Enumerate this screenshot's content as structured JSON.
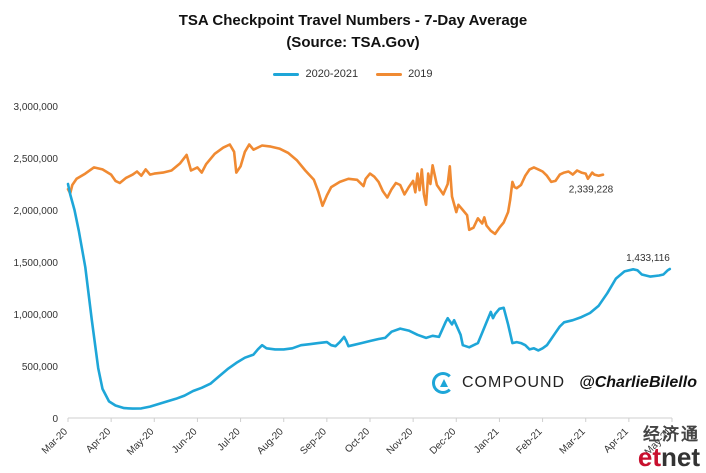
{
  "chart_data": {
    "type": "line",
    "title": "TSA Checkpoint Travel Numbers - 7-Day Average",
    "subtitle": "(Source: TSA.Gov)",
    "xlabel": "",
    "ylabel": "",
    "ylim": [
      0,
      3000000
    ],
    "yticks": [
      "0",
      "500,000",
      "1,000,000",
      "1,500,000",
      "2,000,000",
      "2,500,000",
      "3,000,000"
    ],
    "ytick_values": [
      0,
      500000,
      1000000,
      1500000,
      2000000,
      2500000,
      3000000
    ],
    "xticks": [
      "Mar-20",
      "Apr-20",
      "May-20",
      "Jun-20",
      "Jul-20",
      "Aug-20",
      "Sep-20",
      "Oct-20",
      "Nov-20",
      "Dec-20",
      "Jan-21",
      "Feb-21",
      "Mar-21",
      "Apr-21",
      "May-21"
    ],
    "grid": false,
    "legend_position": "top-center",
    "series": [
      {
        "name": "2020-2021",
        "color": "#1ea6d8",
        "end_label": "1,433,116",
        "points": [
          [
            0.0,
            2250000
          ],
          [
            0.05,
            2150000
          ],
          [
            0.15,
            2000000
          ],
          [
            0.25,
            1800000
          ],
          [
            0.4,
            1450000
          ],
          [
            0.55,
            950000
          ],
          [
            0.7,
            480000
          ],
          [
            0.8,
            280000
          ],
          [
            0.95,
            160000
          ],
          [
            1.1,
            120000
          ],
          [
            1.3,
            95000
          ],
          [
            1.5,
            90000
          ],
          [
            1.7,
            92000
          ],
          [
            1.9,
            110000
          ],
          [
            2.1,
            135000
          ],
          [
            2.3,
            160000
          ],
          [
            2.5,
            185000
          ],
          [
            2.7,
            215000
          ],
          [
            2.9,
            260000
          ],
          [
            3.1,
            290000
          ],
          [
            3.3,
            330000
          ],
          [
            3.5,
            400000
          ],
          [
            3.7,
            470000
          ],
          [
            3.9,
            530000
          ],
          [
            4.1,
            580000
          ],
          [
            4.3,
            610000
          ],
          [
            4.4,
            660000
          ],
          [
            4.5,
            700000
          ],
          [
            4.6,
            670000
          ],
          [
            4.8,
            660000
          ],
          [
            5.0,
            660000
          ],
          [
            5.2,
            670000
          ],
          [
            5.4,
            700000
          ],
          [
            5.6,
            710000
          ],
          [
            5.8,
            720000
          ],
          [
            6.0,
            730000
          ],
          [
            6.1,
            700000
          ],
          [
            6.2,
            690000
          ],
          [
            6.3,
            730000
          ],
          [
            6.4,
            780000
          ],
          [
            6.45,
            740000
          ],
          [
            6.5,
            690000
          ],
          [
            6.6,
            700000
          ],
          [
            6.8,
            720000
          ],
          [
            7.0,
            740000
          ],
          [
            7.2,
            760000
          ],
          [
            7.35,
            770000
          ],
          [
            7.5,
            830000
          ],
          [
            7.7,
            860000
          ],
          [
            7.9,
            840000
          ],
          [
            8.1,
            800000
          ],
          [
            8.3,
            770000
          ],
          [
            8.45,
            790000
          ],
          [
            8.6,
            780000
          ],
          [
            8.75,
            920000
          ],
          [
            8.8,
            960000
          ],
          [
            8.9,
            900000
          ],
          [
            8.95,
            940000
          ],
          [
            9.1,
            800000
          ],
          [
            9.15,
            700000
          ],
          [
            9.3,
            680000
          ],
          [
            9.5,
            720000
          ],
          [
            9.6,
            820000
          ],
          [
            9.7,
            920000
          ],
          [
            9.8,
            1020000
          ],
          [
            9.85,
            960000
          ],
          [
            9.9,
            1000000
          ],
          [
            10.0,
            1050000
          ],
          [
            10.1,
            1060000
          ],
          [
            10.2,
            900000
          ],
          [
            10.3,
            720000
          ],
          [
            10.4,
            730000
          ],
          [
            10.5,
            720000
          ],
          [
            10.6,
            700000
          ],
          [
            10.7,
            660000
          ],
          [
            10.8,
            670000
          ],
          [
            10.9,
            650000
          ],
          [
            11.0,
            670000
          ],
          [
            11.1,
            700000
          ],
          [
            11.2,
            760000
          ],
          [
            11.3,
            820000
          ],
          [
            11.4,
            880000
          ],
          [
            11.5,
            920000
          ],
          [
            11.7,
            940000
          ],
          [
            11.9,
            970000
          ],
          [
            12.1,
            1010000
          ],
          [
            12.3,
            1080000
          ],
          [
            12.5,
            1200000
          ],
          [
            12.7,
            1340000
          ],
          [
            12.9,
            1410000
          ],
          [
            13.1,
            1430000
          ],
          [
            13.2,
            1420000
          ],
          [
            13.3,
            1380000
          ],
          [
            13.5,
            1360000
          ],
          [
            13.7,
            1370000
          ],
          [
            13.8,
            1380000
          ],
          [
            13.9,
            1420000
          ],
          [
            13.95,
            1433116
          ]
        ]
      },
      {
        "name": "2019",
        "color": "#f08a32",
        "end_label": "2,339,228",
        "points": [
          [
            0.0,
            2200000
          ],
          [
            0.05,
            2160000
          ],
          [
            0.1,
            2240000
          ],
          [
            0.2,
            2300000
          ],
          [
            0.4,
            2350000
          ],
          [
            0.6,
            2410000
          ],
          [
            0.8,
            2390000
          ],
          [
            1.0,
            2340000
          ],
          [
            1.1,
            2280000
          ],
          [
            1.2,
            2260000
          ],
          [
            1.35,
            2310000
          ],
          [
            1.5,
            2340000
          ],
          [
            1.6,
            2370000
          ],
          [
            1.7,
            2330000
          ],
          [
            1.8,
            2390000
          ],
          [
            1.9,
            2340000
          ],
          [
            2.0,
            2350000
          ],
          [
            2.2,
            2360000
          ],
          [
            2.4,
            2380000
          ],
          [
            2.6,
            2450000
          ],
          [
            2.75,
            2530000
          ],
          [
            2.85,
            2380000
          ],
          [
            3.0,
            2410000
          ],
          [
            3.1,
            2360000
          ],
          [
            3.2,
            2440000
          ],
          [
            3.4,
            2540000
          ],
          [
            3.6,
            2600000
          ],
          [
            3.75,
            2630000
          ],
          [
            3.85,
            2560000
          ],
          [
            3.9,
            2360000
          ],
          [
            4.0,
            2420000
          ],
          [
            4.1,
            2560000
          ],
          [
            4.2,
            2630000
          ],
          [
            4.3,
            2580000
          ],
          [
            4.5,
            2620000
          ],
          [
            4.7,
            2610000
          ],
          [
            4.9,
            2590000
          ],
          [
            5.1,
            2550000
          ],
          [
            5.3,
            2480000
          ],
          [
            5.5,
            2380000
          ],
          [
            5.7,
            2290000
          ],
          [
            5.8,
            2180000
          ],
          [
            5.9,
            2040000
          ],
          [
            6.0,
            2140000
          ],
          [
            6.1,
            2220000
          ],
          [
            6.3,
            2270000
          ],
          [
            6.5,
            2300000
          ],
          [
            6.7,
            2290000
          ],
          [
            6.85,
            2230000
          ],
          [
            6.9,
            2300000
          ],
          [
            7.0,
            2350000
          ],
          [
            7.1,
            2320000
          ],
          [
            7.2,
            2270000
          ],
          [
            7.3,
            2180000
          ],
          [
            7.4,
            2120000
          ],
          [
            7.5,
            2200000
          ],
          [
            7.6,
            2260000
          ],
          [
            7.7,
            2240000
          ],
          [
            7.8,
            2150000
          ],
          [
            7.9,
            2220000
          ],
          [
            8.0,
            2280000
          ],
          [
            8.05,
            2170000
          ],
          [
            8.1,
            2350000
          ],
          [
            8.15,
            2190000
          ],
          [
            8.2,
            2390000
          ],
          [
            8.25,
            2150000
          ],
          [
            8.3,
            2050000
          ],
          [
            8.35,
            2350000
          ],
          [
            8.4,
            2250000
          ],
          [
            8.45,
            2430000
          ],
          [
            8.55,
            2240000
          ],
          [
            8.7,
            2150000
          ],
          [
            8.8,
            2250000
          ],
          [
            8.85,
            2420000
          ],
          [
            8.9,
            2130000
          ],
          [
            9.0,
            1980000
          ],
          [
            9.05,
            2050000
          ],
          [
            9.15,
            2000000
          ],
          [
            9.25,
            1950000
          ],
          [
            9.3,
            1810000
          ],
          [
            9.4,
            1830000
          ],
          [
            9.5,
            1920000
          ],
          [
            9.6,
            1870000
          ],
          [
            9.65,
            1930000
          ],
          [
            9.7,
            1850000
          ],
          [
            9.8,
            1800000
          ],
          [
            9.9,
            1770000
          ],
          [
            10.0,
            1830000
          ],
          [
            10.1,
            1880000
          ],
          [
            10.2,
            1980000
          ],
          [
            10.25,
            2100000
          ],
          [
            10.3,
            2270000
          ],
          [
            10.35,
            2220000
          ],
          [
            10.4,
            2210000
          ],
          [
            10.5,
            2240000
          ],
          [
            10.6,
            2330000
          ],
          [
            10.7,
            2390000
          ],
          [
            10.8,
            2410000
          ],
          [
            10.9,
            2390000
          ],
          [
            11.0,
            2370000
          ],
          [
            11.1,
            2330000
          ],
          [
            11.2,
            2270000
          ],
          [
            11.3,
            2280000
          ],
          [
            11.4,
            2340000
          ],
          [
            11.5,
            2360000
          ],
          [
            11.6,
            2370000
          ],
          [
            11.7,
            2340000
          ],
          [
            11.8,
            2380000
          ],
          [
            11.9,
            2360000
          ],
          [
            12.0,
            2350000
          ],
          [
            12.05,
            2300000
          ],
          [
            12.15,
            2360000
          ],
          [
            12.2,
            2340000
          ],
          [
            12.3,
            2330000
          ],
          [
            12.4,
            2339228
          ]
        ]
      }
    ]
  },
  "branding": {
    "company": "COMPOUND",
    "handle": "@CharlieBilello",
    "corner_cn": "经济通",
    "corner_en_red": "et",
    "corner_en_dark": "net"
  }
}
